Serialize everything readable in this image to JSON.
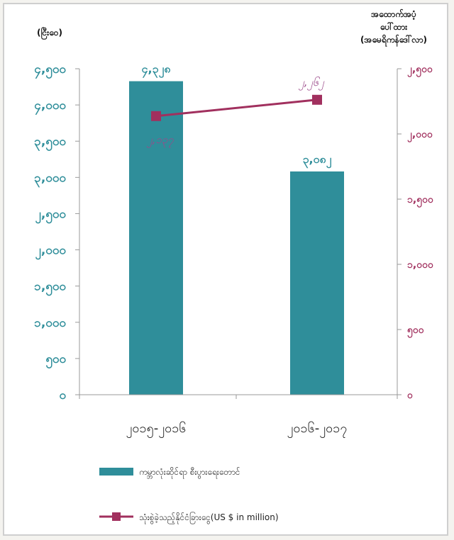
{
  "chart_data": {
    "type": "bar+line",
    "categories": [
      "၂၀၁၅-၂၀၁၆",
      "၂၀၁၆-၂၀၁၇"
    ],
    "left_axis": {
      "unit_label": "(ငြီးဝေ)",
      "ylim": [
        0,
        4500
      ],
      "ticks": [
        "၀",
        "၅၀၀",
        "၁,၀၀၀",
        "၁,၅၀၀",
        "၂,၀၀၀",
        "၂,၅၀၀",
        "၃,၀၀၀",
        "၃,၅၀၀",
        "၄,၀၀၀",
        "၄,၅၀၀"
      ]
    },
    "right_axis": {
      "unit_label": [
        "အထောက်အပံ့",
        "ပေါ်ထား",
        "(အမေရိကန်ဒေါ်လာ)"
      ],
      "ylim": [
        0,
        2500
      ],
      "ticks": [
        "၀",
        "၅၀၀",
        "၁,၀၀၀",
        "၁,၅၀၀",
        "၂,၀၀၀",
        "၂,၅၀၀"
      ]
    },
    "series": [
      {
        "name": "ကမ္ဘာလုံးဆိုင်ရာ စီးပွားရေးတောင်",
        "type": "bar",
        "axis": "left",
        "color": "#2f8e9a",
        "values": [
          4328,
          3082
        ],
        "labels": [
          "၄,၃၂၈",
          "၃,၀၈၂"
        ]
      },
      {
        "name": "သုံးစွဲခဲ့သည့်နိုင်ငံခြားငွေ(US $ in million)",
        "type": "line",
        "axis": "right",
        "color": "#a1305e",
        "values": [
          2137,
          2262
        ],
        "labels": [
          "၂,၁၃၇",
          "၂,၂၆၂"
        ]
      }
    ],
    "legend_position": "bottom"
  }
}
